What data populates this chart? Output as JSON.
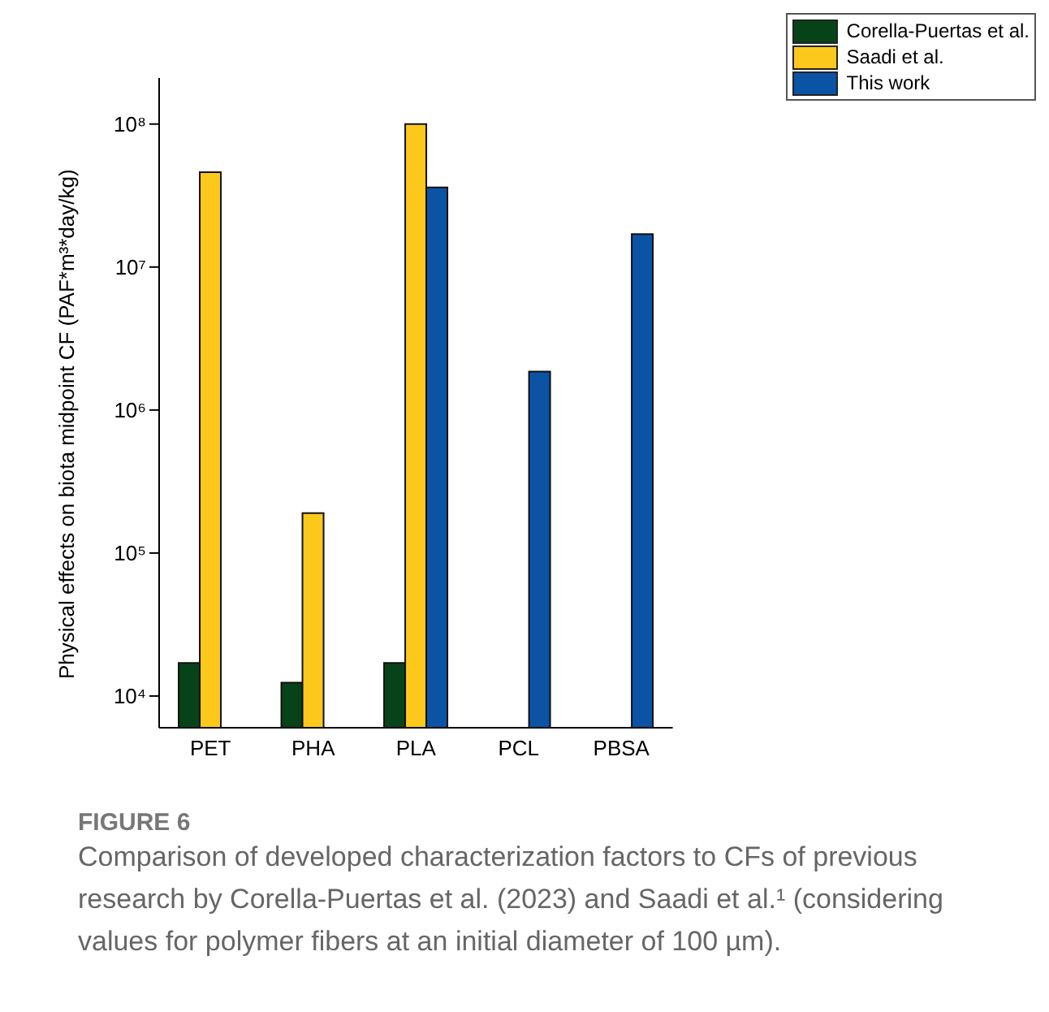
{
  "chart_data": {
    "type": "bar",
    "categories": [
      "PET",
      "PHA",
      "PLA",
      "PCL",
      "PBSA"
    ],
    "series": [
      {
        "name": "Corella-Puertas et al.",
        "color": "#074318",
        "values": [
          17000,
          12400,
          17000,
          null,
          null
        ]
      },
      {
        "name": "Saadi et al.",
        "color": "#fcc81c",
        "values": [
          46000000,
          190000,
          100000000,
          null,
          null
        ]
      },
      {
        "name": "This work",
        "color": "#0b53a5",
        "values": [
          null,
          null,
          36000000,
          1860000,
          17000000
        ]
      }
    ],
    "log": true,
    "ylim": [
      6000,
      210000000
    ],
    "yticks": [
      {
        "value": 10000,
        "label": "10⁴"
      },
      {
        "value": 100000,
        "label": "10⁵"
      },
      {
        "value": 1000000,
        "label": "10⁶"
      },
      {
        "value": 10000000,
        "label": "10⁷"
      },
      {
        "value": 100000000,
        "label": "10⁸"
      }
    ],
    "ylabel": "Physical effects on biota midpoint CF (PAF*m³*day/kg)",
    "legend": "top right",
    "grid": false,
    "annotations": [
      "FIGURE 6",
      "Comparison of developed characterization factors to CFs of previous research by Corella-Puertas et al. (2023) and Saadi et al.¹ (considering values for polymer fibers at an initial diameter of 100 µm)."
    ]
  }
}
